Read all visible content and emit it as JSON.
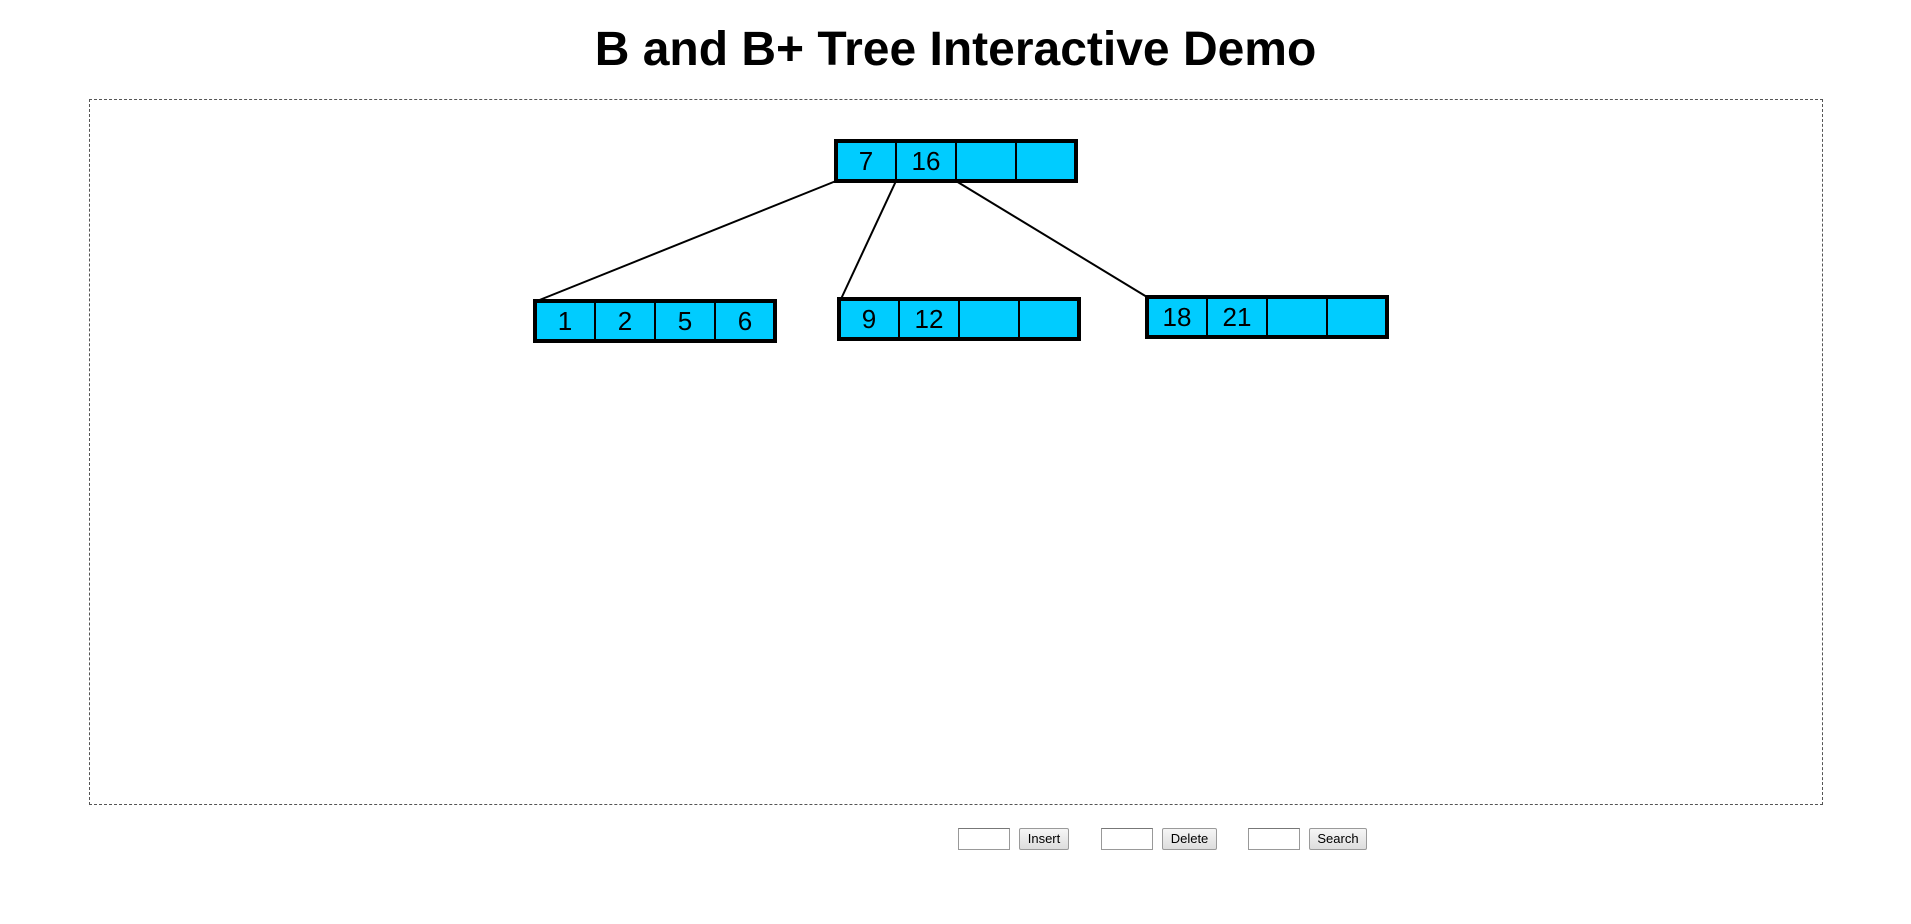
{
  "page": {
    "title": "B and B+ Tree Interactive Demo"
  },
  "tree": {
    "node_fill": "#00ccff",
    "node_stroke": "#000000",
    "slots_per_node": 4,
    "root": {
      "keys": [
        "7",
        "16",
        "",
        ""
      ]
    },
    "children": [
      {
        "keys": [
          "1",
          "2",
          "5",
          "6"
        ]
      },
      {
        "keys": [
          "9",
          "12",
          "",
          ""
        ]
      },
      {
        "keys": [
          "18",
          "21",
          "",
          ""
        ]
      }
    ]
  },
  "controls": {
    "insert": {
      "value": "",
      "label": "Insert"
    },
    "delete": {
      "value": "",
      "label": "Delete"
    },
    "search": {
      "value": "",
      "label": "Search"
    }
  }
}
